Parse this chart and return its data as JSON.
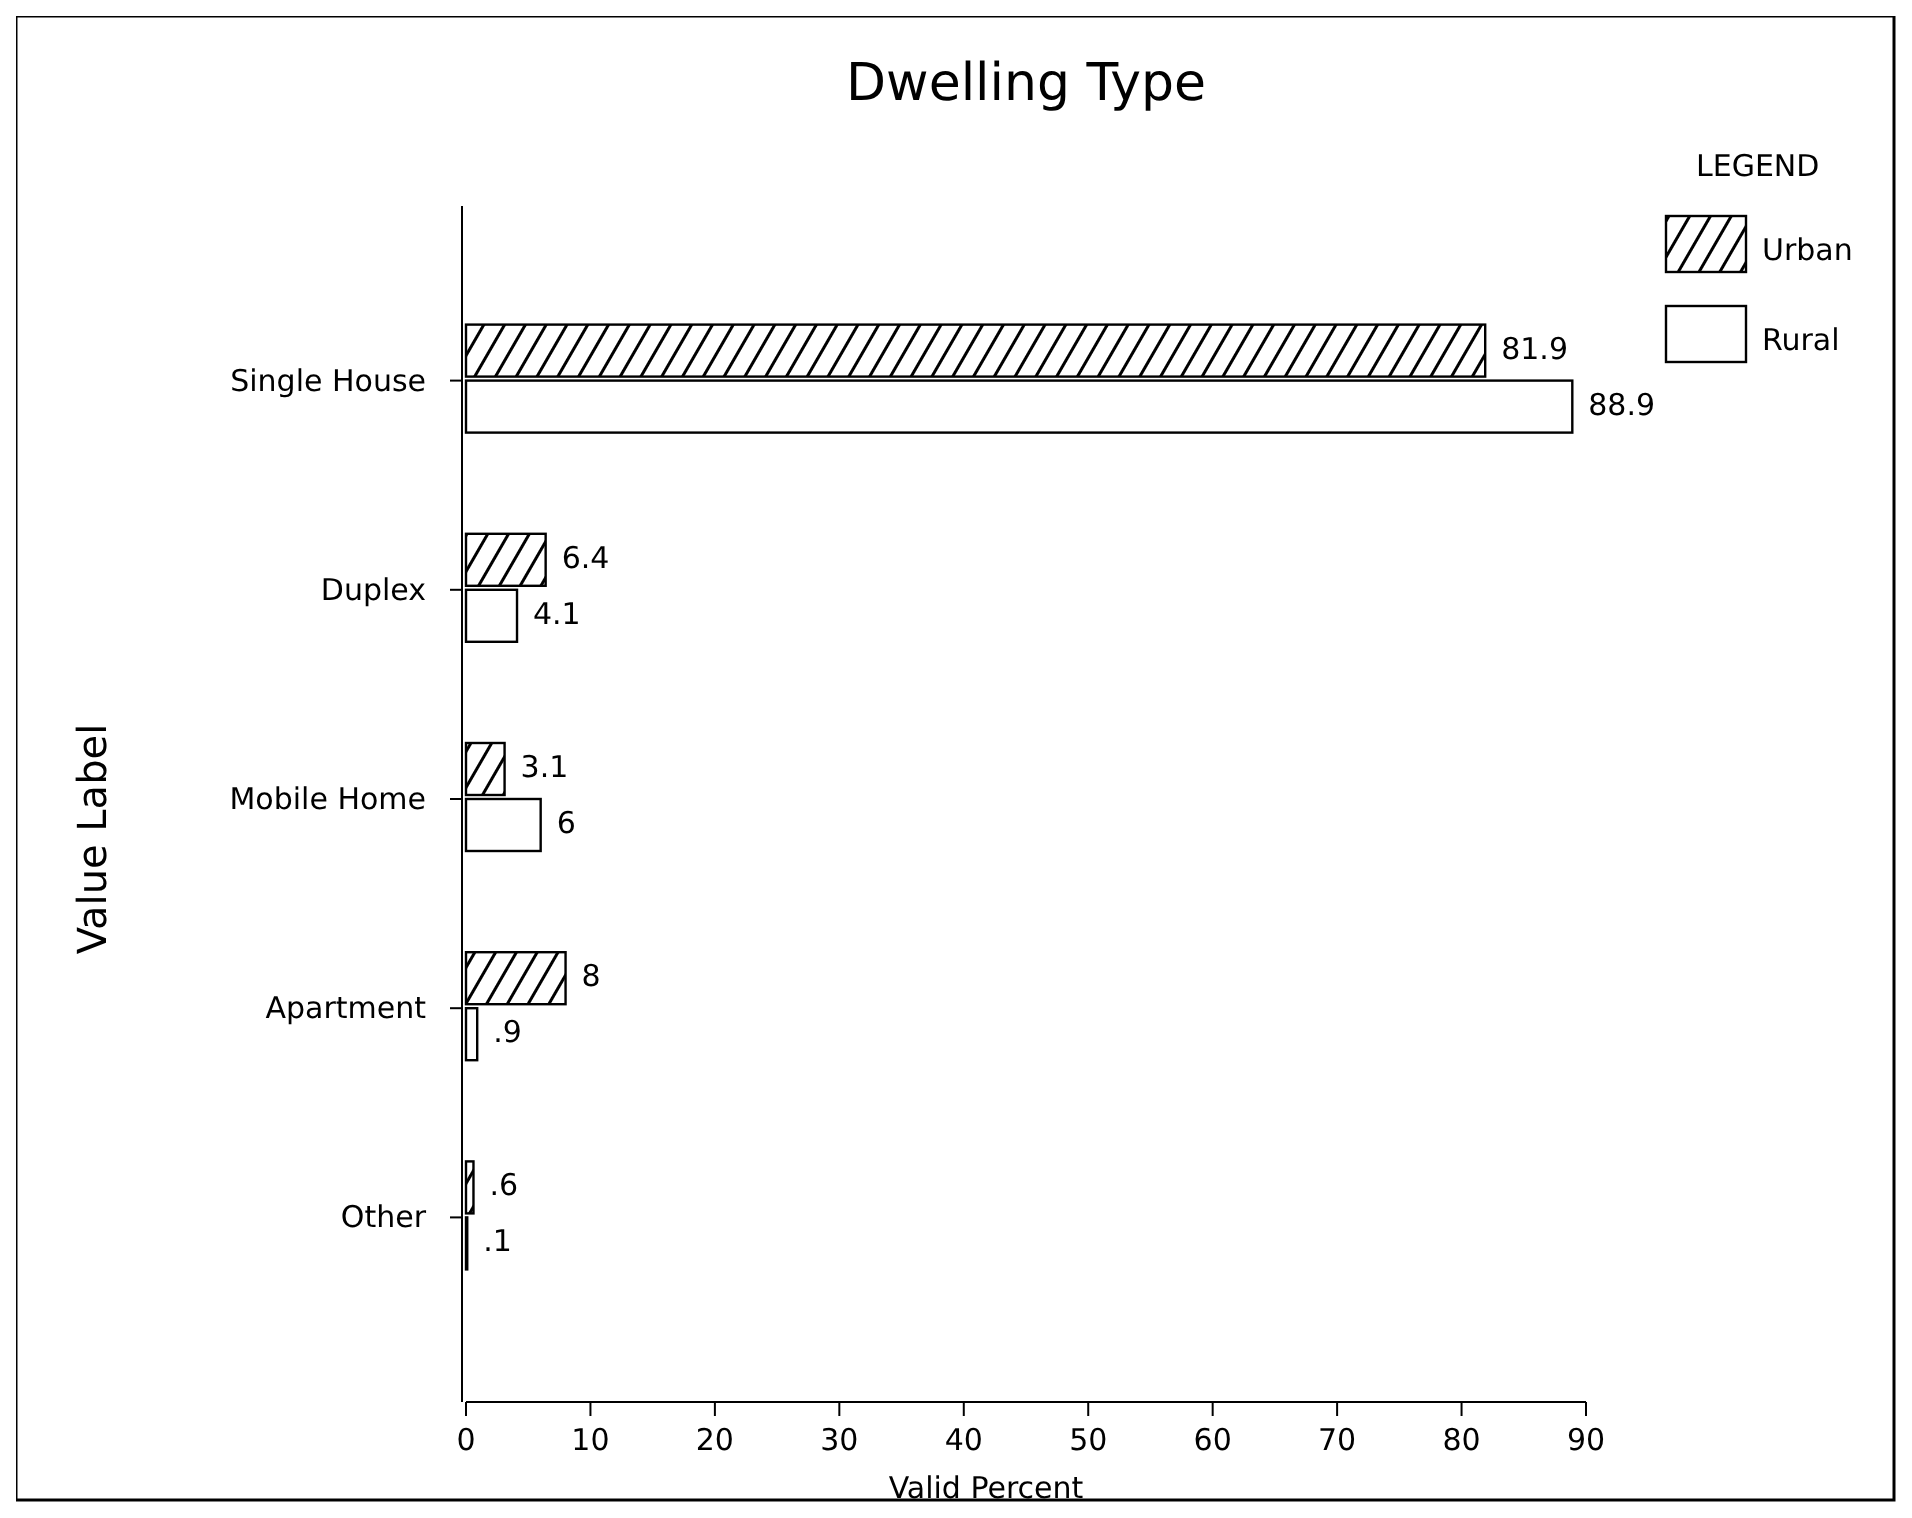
{
  "chart_data": {
    "type": "bar",
    "orientation": "horizontal",
    "title": "Dwelling Type",
    "xlabel": "Valid Percent",
    "ylabel": "Value Label",
    "legend_title": "LEGEND",
    "legend": "top right",
    "categories": [
      "Single House",
      "Duplex",
      "Mobile Home",
      "Apartment",
      "Other"
    ],
    "series": [
      {
        "name": "Urban",
        "color": "#000000",
        "values": [
          81.9,
          6.4,
          3.1,
          8,
          0.6
        ],
        "value_labels": [
          "81.9",
          "6.4",
          "3.1",
          "8",
          ".6"
        ]
      },
      {
        "name": "Rural",
        "color": "#ffffff",
        "values": [
          88.9,
          4.1,
          6,
          0.9,
          0.1
        ],
        "value_labels": [
          "88.9",
          "4.1",
          "6",
          ".9",
          ".1"
        ]
      }
    ],
    "xlim": [
      0,
      90
    ],
    "xticks": [
      0,
      10,
      20,
      30,
      40,
      50,
      60,
      70,
      80,
      90
    ]
  }
}
